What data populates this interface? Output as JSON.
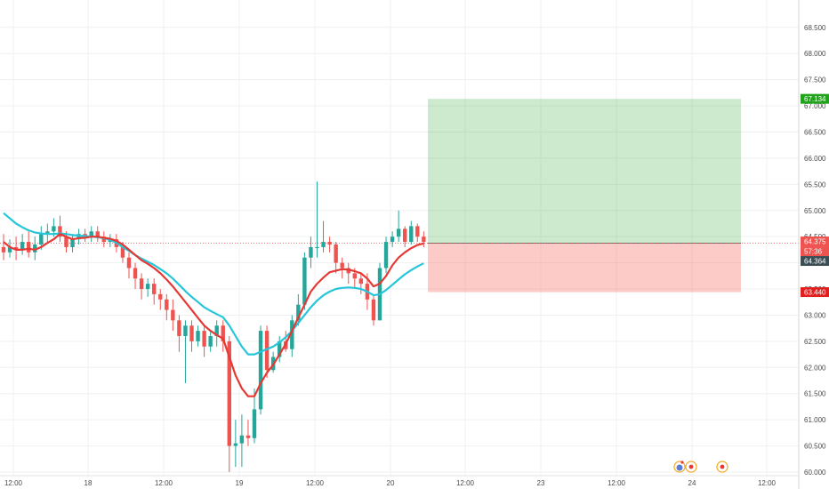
{
  "chart_data": {
    "type": "candlestick",
    "y_ticks": [
      "60.000",
      "60.500",
      "61.000",
      "61.500",
      "62.000",
      "62.500",
      "63.000",
      "63.500",
      "64.000",
      "64.500",
      "65.000",
      "65.500",
      "66.000",
      "66.500",
      "67.000",
      "67.500",
      "68.000",
      "68.500"
    ],
    "ylim": [
      59.95,
      68.95
    ],
    "x_ticks": [
      "12:00",
      "18",
      "12:00",
      "19",
      "12:00",
      "20",
      "12:00",
      "23",
      "12:00",
      "24",
      "12:00"
    ],
    "candles": [
      [
        64.3,
        64.2,
        64.55,
        64.05
      ],
      [
        64.2,
        64.3,
        64.45,
        64.1
      ],
      [
        64.3,
        64.25,
        64.5,
        64.05
      ],
      [
        64.25,
        64.4,
        64.55,
        64.15
      ],
      [
        64.4,
        64.2,
        64.6,
        64.1
      ],
      [
        64.2,
        64.35,
        64.5,
        64.05
      ],
      [
        64.35,
        64.55,
        64.7,
        64.25
      ],
      [
        64.55,
        64.6,
        64.75,
        64.4
      ],
      [
        64.6,
        64.7,
        64.85,
        64.5
      ],
      [
        64.7,
        64.5,
        64.9,
        64.4
      ],
      [
        64.5,
        64.3,
        64.6,
        64.2
      ],
      [
        64.3,
        64.45,
        64.55,
        64.2
      ],
      [
        64.45,
        64.55,
        64.65,
        64.35
      ],
      [
        64.55,
        64.5,
        64.65,
        64.4
      ],
      [
        64.5,
        64.6,
        64.7,
        64.4
      ],
      [
        64.6,
        64.5,
        64.7,
        64.4
      ],
      [
        64.5,
        64.4,
        64.6,
        64.3
      ],
      [
        64.4,
        64.45,
        64.55,
        64.3
      ],
      [
        64.45,
        64.3,
        64.55,
        64.2
      ],
      [
        64.3,
        64.1,
        64.4,
        64.0
      ],
      [
        64.1,
        63.9,
        64.2,
        63.7
      ],
      [
        63.9,
        63.7,
        64.0,
        63.5
      ],
      [
        63.7,
        63.5,
        63.8,
        63.3
      ],
      [
        63.5,
        63.6,
        63.7,
        63.35
      ],
      [
        63.6,
        63.4,
        63.7,
        63.2
      ],
      [
        63.4,
        63.3,
        63.5,
        63.1
      ],
      [
        63.3,
        63.1,
        63.4,
        62.9
      ],
      [
        63.1,
        62.9,
        63.3,
        62.7
      ],
      [
        62.9,
        62.6,
        63.0,
        62.3
      ],
      [
        62.6,
        62.8,
        62.9,
        61.7
      ],
      [
        62.8,
        62.5,
        62.9,
        62.3
      ],
      [
        62.5,
        62.7,
        62.8,
        62.4
      ],
      [
        62.7,
        62.4,
        62.8,
        62.2
      ],
      [
        62.4,
        62.6,
        62.7,
        62.3
      ],
      [
        62.6,
        62.8,
        62.9,
        62.4
      ],
      [
        62.8,
        62.5,
        62.9,
        62.3
      ],
      [
        62.5,
        60.5,
        62.6,
        60.0
      ],
      [
        60.5,
        60.55,
        61.0,
        60.1
      ],
      [
        60.55,
        60.7,
        61.1,
        60.1
      ],
      [
        60.7,
        60.65,
        61.0,
        60.5
      ],
      [
        60.65,
        61.2,
        61.6,
        60.55
      ],
      [
        61.2,
        62.7,
        62.8,
        61.1
      ],
      [
        62.7,
        61.95,
        62.8,
        61.8
      ],
      [
        61.95,
        62.2,
        62.3,
        61.9
      ],
      [
        62.2,
        62.5,
        62.6,
        62.1
      ],
      [
        62.5,
        62.35,
        62.7,
        62.3
      ],
      [
        62.35,
        62.9,
        63.0,
        62.2
      ],
      [
        62.9,
        63.2,
        63.4,
        62.8
      ],
      [
        63.2,
        64.1,
        64.2,
        63.1
      ],
      [
        64.1,
        64.3,
        64.5,
        63.9
      ],
      [
        64.3,
        64.3,
        65.55,
        64.1
      ],
      [
        64.3,
        64.4,
        64.8,
        64.2
      ],
      [
        64.4,
        64.35,
        64.5,
        64.2
      ],
      [
        64.35,
        64.0,
        64.4,
        63.8
      ],
      [
        64.0,
        63.9,
        64.1,
        63.7
      ],
      [
        63.9,
        63.8,
        64.0,
        63.6
      ],
      [
        63.8,
        63.7,
        63.9,
        63.5
      ],
      [
        63.7,
        63.6,
        63.8,
        63.4
      ],
      [
        63.6,
        63.3,
        63.8,
        63.1
      ],
      [
        63.3,
        62.9,
        63.4,
        62.8
      ],
      [
        62.9,
        63.9,
        64.0,
        62.9
      ],
      [
        63.9,
        64.4,
        64.5,
        63.8
      ],
      [
        64.4,
        64.5,
        64.6,
        64.3
      ],
      [
        64.5,
        64.65,
        65.0,
        64.4
      ],
      [
        64.65,
        64.4,
        64.7,
        64.3
      ],
      [
        64.4,
        64.7,
        64.8,
        64.35
      ],
      [
        64.7,
        64.5,
        64.75,
        64.4
      ],
      [
        64.5,
        64.4,
        64.6,
        64.3
      ]
    ],
    "ema_fast": [
      64.4,
      64.3,
      64.25,
      64.25,
      64.27,
      64.25,
      64.3,
      64.38,
      64.45,
      64.55,
      64.5,
      64.45,
      64.47,
      64.48,
      64.5,
      64.5,
      64.48,
      64.46,
      64.42,
      64.35,
      64.25,
      64.15,
      64.05,
      63.98,
      63.9,
      63.8,
      63.68,
      63.55,
      63.4,
      63.25,
      63.1,
      62.95,
      62.8,
      62.7,
      62.62,
      62.55,
      62.2,
      61.85,
      61.6,
      61.45,
      61.45,
      61.7,
      61.9,
      62.05,
      62.25,
      62.45,
      62.7,
      62.95,
      63.2,
      63.45,
      63.6,
      63.72,
      63.82,
      63.85,
      63.88,
      63.87,
      63.84,
      63.8,
      63.7,
      63.55,
      63.6,
      63.75,
      63.95,
      64.1,
      64.2,
      64.28,
      64.34,
      64.37
    ],
    "ema_slow": [
      64.95,
      64.85,
      64.75,
      64.68,
      64.62,
      64.58,
      64.56,
      64.55,
      64.55,
      64.56,
      64.55,
      64.53,
      64.52,
      64.51,
      64.5,
      64.49,
      64.47,
      64.44,
      64.38,
      64.3,
      64.23,
      64.15,
      64.08,
      64.02,
      63.96,
      63.88,
      63.8,
      63.7,
      63.58,
      63.46,
      63.35,
      63.25,
      63.15,
      63.08,
      63.02,
      62.96,
      62.8,
      62.6,
      62.4,
      62.25,
      62.25,
      62.3,
      62.35,
      62.4,
      62.48,
      62.58,
      62.7,
      62.85,
      63.0,
      63.15,
      63.28,
      63.38,
      63.45,
      63.5,
      63.52,
      63.53,
      63.52,
      63.5,
      63.45,
      63.38,
      63.4,
      63.48,
      63.58,
      63.68,
      63.78,
      63.86,
      63.93,
      63.99
    ],
    "position": {
      "entry": 64.375,
      "target": 67.134,
      "stop": 63.44,
      "current": 64.364
    },
    "price_labels": {
      "target": "67.134",
      "entry": "64.375",
      "countdown": "57:36",
      "current": "64.364",
      "stop": "63.440"
    },
    "colors": {
      "bull": "#26a69a",
      "bear": "#ef5350",
      "ema_fast": "#e53935",
      "ema_slow": "#26c6da",
      "profit_zone": "rgba(76,175,80,0.28)",
      "loss_zone": "rgba(244,67,54,0.28)",
      "target_tag": "#22a21d",
      "stop_tag": "#e02020",
      "entry_tag": "#ef5350",
      "current_tag": "#3c4d54"
    }
  }
}
